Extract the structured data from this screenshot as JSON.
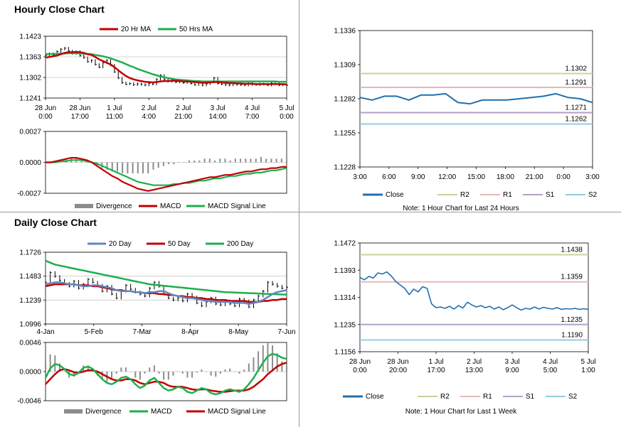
{
  "sections": {
    "hourly_title": "Hourly Close Chart",
    "daily_title": "Daily Close Chart"
  },
  "colors": {
    "price": "#000000",
    "ma_short": "#c00000",
    "ma_long": "#1eae4e",
    "ma_mid_blue": "#5f86c4",
    "macd": "#c00000",
    "signal": "#1eae4e",
    "daily_macd": "#1eae4e",
    "daily_signal": "#c00000",
    "divergence": "#8c8c8c",
    "close": "#1f6fb0",
    "r2": "#c3d69b",
    "r1": "#e6b9b8",
    "s1": "#b2a1c7",
    "s2": "#93cddd",
    "grid": "#c8c8c8"
  },
  "chart_data": [
    {
      "id": "hourly-price",
      "type": "line",
      "title": "Hourly Close Chart",
      "legend": [
        "20 Hr MA",
        "50 Hrs MA"
      ],
      "yticks": [
        "1.1423",
        "1.1363",
        "1.1302",
        "1.1241"
      ],
      "ylim": [
        1.1241,
        1.1423
      ],
      "xticks": [
        [
          "28 Jun",
          "0:00"
        ],
        [
          "28 Jun",
          "17:00"
        ],
        [
          "1 Jul",
          "11:00"
        ],
        [
          "2 Jul",
          "4:00"
        ],
        [
          "2 Jul",
          "21:00"
        ],
        [
          "3 Jul",
          "14:00"
        ],
        [
          "4 Jul",
          "7:00"
        ],
        [
          "5 Jul",
          "0:00"
        ]
      ],
      "price": [
        1.1366,
        1.1372,
        1.1368,
        1.1378,
        1.1385,
        1.1388,
        1.138,
        1.1372,
        1.1378,
        1.1366,
        1.136,
        1.1348,
        1.1352,
        1.134,
        1.1332,
        1.1345,
        1.1352,
        1.1338,
        1.1318,
        1.13,
        1.1286,
        1.1282,
        1.1284,
        1.128,
        1.1283,
        1.1281,
        1.1279,
        1.1284,
        1.1282,
        1.1296,
        1.1308,
        1.1296,
        1.129,
        1.1294,
        1.1288,
        1.1292,
        1.1286,
        1.129,
        1.1284,
        1.128,
        1.1285,
        1.1279,
        1.1283,
        1.1288,
        1.13,
        1.1284,
        1.1282,
        1.128,
        1.1279,
        1.1283,
        1.1281,
        1.128,
        1.1279,
        1.1284,
        1.1281,
        1.128,
        1.1283,
        1.1282,
        1.1279,
        1.1285,
        1.1283,
        1.1279,
        1.128,
        1.1279
      ],
      "ma20": [
        1.136,
        1.1362,
        1.1364,
        1.1366,
        1.137,
        1.1374,
        1.1376,
        1.1376,
        1.1377,
        1.1376,
        1.1374,
        1.137,
        1.1368,
        1.1362,
        1.1355,
        1.135,
        1.1345,
        1.134,
        1.1332,
        1.1323,
        1.1314,
        1.1306,
        1.13,
        1.1296,
        1.1293,
        1.1291,
        1.1289,
        1.1288,
        1.1287,
        1.1288,
        1.129,
        1.1291,
        1.1291,
        1.1292,
        1.1292,
        1.1291,
        1.129,
        1.129,
        1.1289,
        1.1288,
        1.1287,
        1.1286,
        1.1286,
        1.1287,
        1.1288,
        1.1288,
        1.1287,
        1.1286,
        1.1285,
        1.1285,
        1.1284,
        1.1284,
        1.1283,
        1.1283,
        1.1283,
        1.1282,
        1.1282,
        1.1282,
        1.1282,
        1.1282,
        1.1282,
        1.1282,
        1.1282,
        1.1281
      ],
      "ma50": [
        1.137,
        1.137,
        1.1371,
        1.1371,
        1.1372,
        1.1372,
        1.1373,
        1.1373,
        1.1373,
        1.1372,
        1.1372,
        1.1371,
        1.137,
        1.1368,
        1.1366,
        1.1364,
        1.1361,
        1.1358,
        1.1354,
        1.135,
        1.1346,
        1.1341,
        1.1336,
        1.1332,
        1.1327,
        1.1323,
        1.1319,
        1.1315,
        1.1311,
        1.1308,
        1.1305,
        1.1302,
        1.13,
        1.1298,
        1.1296,
        1.1295,
        1.1294,
        1.1293,
        1.1292,
        1.1291,
        1.1291,
        1.129,
        1.129,
        1.129,
        1.129,
        1.129,
        1.129,
        1.129,
        1.129,
        1.129,
        1.129,
        1.129,
        1.129,
        1.129,
        1.129,
        1.129,
        1.129,
        1.129,
        1.129,
        1.129,
        1.129,
        1.1289,
        1.1289,
        1.1289
      ]
    },
    {
      "id": "hourly-macd",
      "type": "line",
      "legend": [
        "Divergence",
        "MACD",
        "MACD Signal Line"
      ],
      "yticks": [
        "0.0027",
        "0.0000",
        "-0.0027"
      ],
      "ylim": [
        -0.0027,
        0.0027
      ],
      "macd": [
        0.0,
        0.0,
        0.0001,
        0.0002,
        0.0003,
        0.0004,
        0.0004,
        0.0003,
        0.0002,
        0.0,
        -0.0003,
        -0.0006,
        -0.0009,
        -0.0012,
        -0.0014,
        -0.0017,
        -0.0019,
        -0.0021,
        -0.0023,
        -0.0024,
        -0.0025,
        -0.0024,
        -0.0023,
        -0.0022,
        -0.0021,
        -0.002,
        -0.0019,
        -0.0018,
        -0.0017,
        -0.0016,
        -0.0015,
        -0.0014,
        -0.0013,
        -0.0013,
        -0.0012,
        -0.0011,
        -0.0011,
        -0.001,
        -0.0009,
        -0.0008,
        -0.0008,
        -0.0007,
        -0.0006,
        -0.0006,
        -0.0005,
        -0.0005,
        -0.0004,
        -0.0004
      ],
      "signal": [
        0.0,
        0.0,
        0.0,
        0.0001,
        0.0001,
        0.0002,
        0.0002,
        0.0002,
        0.0001,
        0.0,
        -0.0001,
        -0.0003,
        -0.0005,
        -0.0007,
        -0.0009,
        -0.0011,
        -0.0013,
        -0.0015,
        -0.0017,
        -0.0018,
        -0.0019,
        -0.002,
        -0.002,
        -0.002,
        -0.002,
        -0.0019,
        -0.0019,
        -0.0018,
        -0.0018,
        -0.0017,
        -0.0016,
        -0.0016,
        -0.0015,
        -0.0014,
        -0.0014,
        -0.0013,
        -0.0012,
        -0.0012,
        -0.0011,
        -0.001,
        -0.001,
        -0.0009,
        -0.0009,
        -0.0008,
        -0.0007,
        -0.0007,
        -0.0006,
        -0.0005
      ]
    },
    {
      "id": "hourly-pivots",
      "type": "line",
      "yticks": [
        "1.1336",
        "1.1309",
        "1.1282",
        "1.1255",
        "1.1228"
      ],
      "ylim": [
        1.1228,
        1.1336
      ],
      "xticks": [
        "3:00",
        "6:00",
        "9:00",
        "12:00",
        "15:00",
        "18:00",
        "21:00",
        "0:00",
        "3:00"
      ],
      "levels": [
        {
          "name": "R2",
          "value": 1.1302,
          "label": "1.1302"
        },
        {
          "name": "R1",
          "value": 1.1291,
          "label": "1.1291"
        },
        {
          "name": "S1",
          "value": 1.1271,
          "label": "1.1271"
        },
        {
          "name": "S2",
          "value": 1.1262,
          "label": "1.1262"
        }
      ],
      "close": [
        1.1283,
        1.1281,
        1.1284,
        1.1284,
        1.1281,
        1.1285,
        1.1285,
        1.1286,
        1.1279,
        1.1278,
        1.1281,
        1.1281,
        1.1281,
        1.1282,
        1.1283,
        1.1284,
        1.1286,
        1.1283,
        1.1282,
        1.1279
      ],
      "legend": [
        "Close",
        "R2",
        "R1",
        "S1",
        "S2"
      ],
      "note": "Note: 1 Hour Chart for Last 24 Hours"
    },
    {
      "id": "daily-price",
      "type": "line",
      "title": "Daily Close Chart",
      "legend": [
        "20 Day",
        "50 Day",
        "200 Day"
      ],
      "yticks": [
        "1.1726",
        "1.1483",
        "1.1239",
        "1.0996"
      ],
      "ylim": [
        1.0996,
        1.1726
      ],
      "xticks": [
        "4-Jan",
        "5-Feb",
        "7-Mar",
        "8-Apr",
        "8-May",
        "7-Jun"
      ],
      "price": [
        1.142,
        1.152,
        1.148,
        1.144,
        1.141,
        1.138,
        1.143,
        1.136,
        1.14,
        1.145,
        1.142,
        1.139,
        1.133,
        1.138,
        1.13,
        1.126,
        1.133,
        1.139,
        1.135,
        1.132,
        1.13,
        1.128,
        1.136,
        1.142,
        1.138,
        1.13,
        1.126,
        1.124,
        1.126,
        1.123,
        1.13,
        1.127,
        1.121,
        1.118,
        1.122,
        1.126,
        1.12,
        1.119,
        1.123,
        1.12,
        1.118,
        1.125,
        1.123,
        1.117,
        1.124,
        1.128,
        1.133,
        1.142,
        1.14,
        1.138,
        1.136,
        1.137
      ],
      "ma20": [
        1.14,
        1.141,
        1.142,
        1.142,
        1.141,
        1.14,
        1.14,
        1.139,
        1.138,
        1.138,
        1.139,
        1.139,
        1.138,
        1.137,
        1.136,
        1.134,
        1.133,
        1.133,
        1.133,
        1.132,
        1.132,
        1.131,
        1.132,
        1.132,
        1.133,
        1.133,
        1.131,
        1.129,
        1.128,
        1.127,
        1.126,
        1.126,
        1.125,
        1.124,
        1.123,
        1.123,
        1.122,
        1.122,
        1.122,
        1.122,
        1.121,
        1.121,
        1.121,
        1.12,
        1.121,
        1.122,
        1.124,
        1.127,
        1.13,
        1.132,
        1.133,
        1.134
      ],
      "ma50": [
        1.138,
        1.139,
        1.14,
        1.14,
        1.14,
        1.14,
        1.14,
        1.139,
        1.139,
        1.139,
        1.138,
        1.138,
        1.137,
        1.136,
        1.135,
        1.134,
        1.134,
        1.133,
        1.133,
        1.132,
        1.132,
        1.131,
        1.131,
        1.131,
        1.13,
        1.13,
        1.129,
        1.129,
        1.128,
        1.128,
        1.127,
        1.127,
        1.126,
        1.126,
        1.125,
        1.125,
        1.124,
        1.124,
        1.124,
        1.123,
        1.123,
        1.123,
        1.123,
        1.122,
        1.122,
        1.122,
        1.123,
        1.123,
        1.124,
        1.124,
        1.125,
        1.125
      ],
      "ma200": [
        1.164,
        1.162,
        1.16,
        1.159,
        1.158,
        1.157,
        1.156,
        1.155,
        1.154,
        1.153,
        1.152,
        1.151,
        1.15,
        1.149,
        1.148,
        1.147,
        1.146,
        1.145,
        1.144,
        1.143,
        1.142,
        1.141,
        1.14,
        1.1395,
        1.139,
        1.1385,
        1.138,
        1.1375,
        1.137,
        1.1365,
        1.136,
        1.1355,
        1.135,
        1.1345,
        1.134,
        1.1335,
        1.133,
        1.1325,
        1.132,
        1.1318,
        1.1316,
        1.1314,
        1.1312,
        1.131,
        1.1308,
        1.1306,
        1.1304,
        1.1302,
        1.13,
        1.1298,
        1.1296,
        1.1294
      ]
    },
    {
      "id": "daily-macd",
      "type": "line",
      "legend": [
        "Divergence",
        "MACD",
        "MACD Signal Line"
      ],
      "yticks": [
        "0.0046",
        "0.0000",
        "-0.0046"
      ],
      "ylim": [
        -0.0046,
        0.0046
      ],
      "macd": [
        -0.001,
        0.0005,
        0.0012,
        0.001,
        0.0004,
        -0.0004,
        -0.0006,
        -0.0002,
        0.0006,
        0.0008,
        0.0004,
        -0.0004,
        -0.0012,
        -0.0018,
        -0.002,
        -0.0016,
        -0.001,
        -0.0008,
        -0.0012,
        -0.002,
        -0.0026,
        -0.0022,
        -0.0014,
        -0.001,
        -0.0018,
        -0.0026,
        -0.003,
        -0.0028,
        -0.0024,
        -0.0026,
        -0.0032,
        -0.0034,
        -0.003,
        -0.0026,
        -0.0028,
        -0.0034,
        -0.0036,
        -0.0034,
        -0.003,
        -0.0028,
        -0.003,
        -0.0032,
        -0.0028,
        -0.002,
        -0.001,
        0.0002,
        0.0014,
        0.0024,
        0.0028,
        0.0026,
        0.0022,
        0.002
      ],
      "signal": [
        -0.002,
        -0.0012,
        -0.0004,
        0.0002,
        0.0004,
        0.0002,
        -0.0001,
        -0.0002,
        0.0,
        0.0002,
        0.0002,
        0.0,
        -0.0004,
        -0.0008,
        -0.0012,
        -0.0014,
        -0.0014,
        -0.0012,
        -0.0012,
        -0.0014,
        -0.0018,
        -0.002,
        -0.0018,
        -0.0016,
        -0.0016,
        -0.0018,
        -0.0022,
        -0.0024,
        -0.0024,
        -0.0024,
        -0.0026,
        -0.0028,
        -0.0029,
        -0.0028,
        -0.0028,
        -0.003,
        -0.0031,
        -0.0032,
        -0.0032,
        -0.0031,
        -0.003,
        -0.003,
        -0.003,
        -0.0028,
        -0.0024,
        -0.0018,
        -0.0012,
        -0.0004,
        0.0002,
        0.0008,
        0.0012,
        0.0014
      ]
    },
    {
      "id": "daily-pivots",
      "type": "line",
      "yticks": [
        "1.1472",
        "1.1393",
        "1.1314",
        "1.1235",
        "1.1156"
      ],
      "ylim": [
        1.1156,
        1.1472
      ],
      "xticks": [
        [
          "28 Jun",
          "0:00"
        ],
        [
          "28 Jun",
          "20:00"
        ],
        [
          "1 Jul",
          "17:00"
        ],
        [
          "2 Jul",
          "13:00"
        ],
        [
          "3 Jul",
          "9:00"
        ],
        [
          "4 Jul",
          "5:00"
        ],
        [
          "5 Jul",
          "1:00"
        ]
      ],
      "levels": [
        {
          "name": "R2",
          "value": 1.1438,
          "label": "1.1438"
        },
        {
          "name": "R1",
          "value": 1.1359,
          "label": "1.1359"
        },
        {
          "name": "S1",
          "value": 1.1235,
          "label": "1.1235"
        },
        {
          "name": "S2",
          "value": 1.119,
          "label": "1.1190"
        }
      ],
      "close": [
        1.1372,
        1.1365,
        1.1375,
        1.137,
        1.1385,
        1.1382,
        1.1388,
        1.1376,
        1.136,
        1.135,
        1.134,
        1.1322,
        1.1338,
        1.133,
        1.1345,
        1.134,
        1.1295,
        1.1284,
        1.1286,
        1.1282,
        1.1288,
        1.128,
        1.129,
        1.1283,
        1.13,
        1.1292,
        1.1286,
        1.129,
        1.1284,
        1.1288,
        1.128,
        1.1286,
        1.1278,
        1.1284,
        1.1292,
        1.1284,
        1.1277,
        1.1282,
        1.128,
        1.1286,
        1.128,
        1.1285,
        1.1282,
        1.128,
        1.1284,
        1.1279,
        1.1281,
        1.128,
        1.1282,
        1.1279,
        1.1281,
        1.1279
      ],
      "legend": [
        "Close",
        "R2",
        "R1",
        "S1",
        "S2"
      ],
      "note": "Note: 1 Hour Chart for Last 1 Week"
    }
  ]
}
